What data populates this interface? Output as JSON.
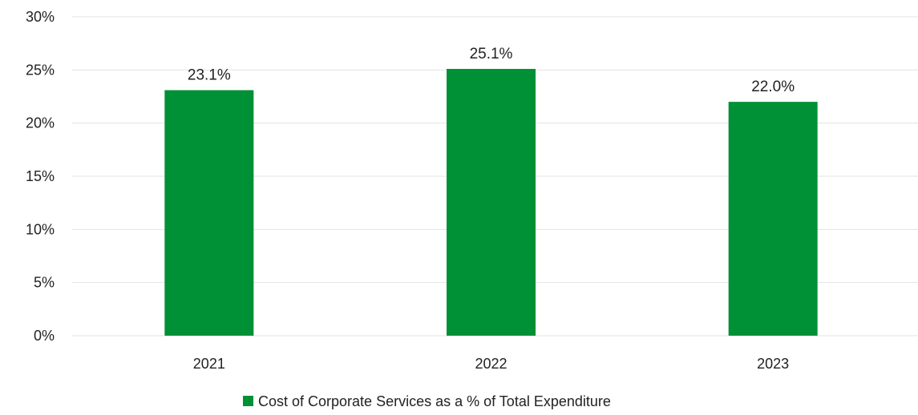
{
  "chart_data": {
    "type": "bar",
    "categories": [
      "2021",
      "2022",
      "2023"
    ],
    "series": [
      {
        "name": "Cost of Corporate Services as a % of Total Expenditure",
        "values": [
          23.1,
          25.1,
          22.0
        ],
        "data_labels": [
          "23.1%",
          "25.1%",
          "22.0%"
        ],
        "color": "#009036"
      }
    ],
    "ylim": [
      0,
      30
    ],
    "yticks": [
      0,
      5,
      10,
      15,
      20,
      25,
      30
    ],
    "ytick_labels": [
      "0%",
      "5%",
      "10%",
      "15%",
      "20%",
      "25%",
      "30%"
    ],
    "grid": true,
    "legend_position": "bottom-center",
    "title": "",
    "xlabel": "",
    "ylabel": ""
  }
}
